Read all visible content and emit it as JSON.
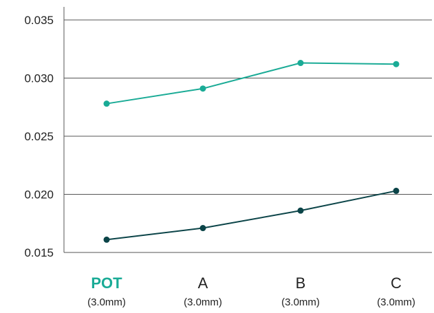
{
  "chart_data": {
    "type": "line",
    "categories": [
      "POT",
      "A",
      "B",
      "C"
    ],
    "category_sublabels": [
      "(3.0mm)",
      "(3.0mm)",
      "(3.0mm)",
      "(3.0mm)"
    ],
    "highlighted_category_index": 0,
    "series": [
      {
        "values": [
          0.0278,
          0.0291,
          0.0313,
          0.0312
        ],
        "color": "#1aab96"
      },
      {
        "values": [
          0.0161,
          0.0171,
          0.0186,
          0.0203
        ],
        "color": "#0b4448"
      }
    ],
    "ylim": [
      0.015,
      0.035
    ],
    "yticks": [
      "0.015",
      "0.020",
      "0.025",
      "0.030",
      "0.035"
    ],
    "ytick_values": [
      0.015,
      0.02,
      0.025,
      0.03,
      0.035
    ],
    "grid": true,
    "colors": {
      "highlight": "#1aab96",
      "axis_text": "#222222",
      "gridline": "#555555"
    }
  }
}
